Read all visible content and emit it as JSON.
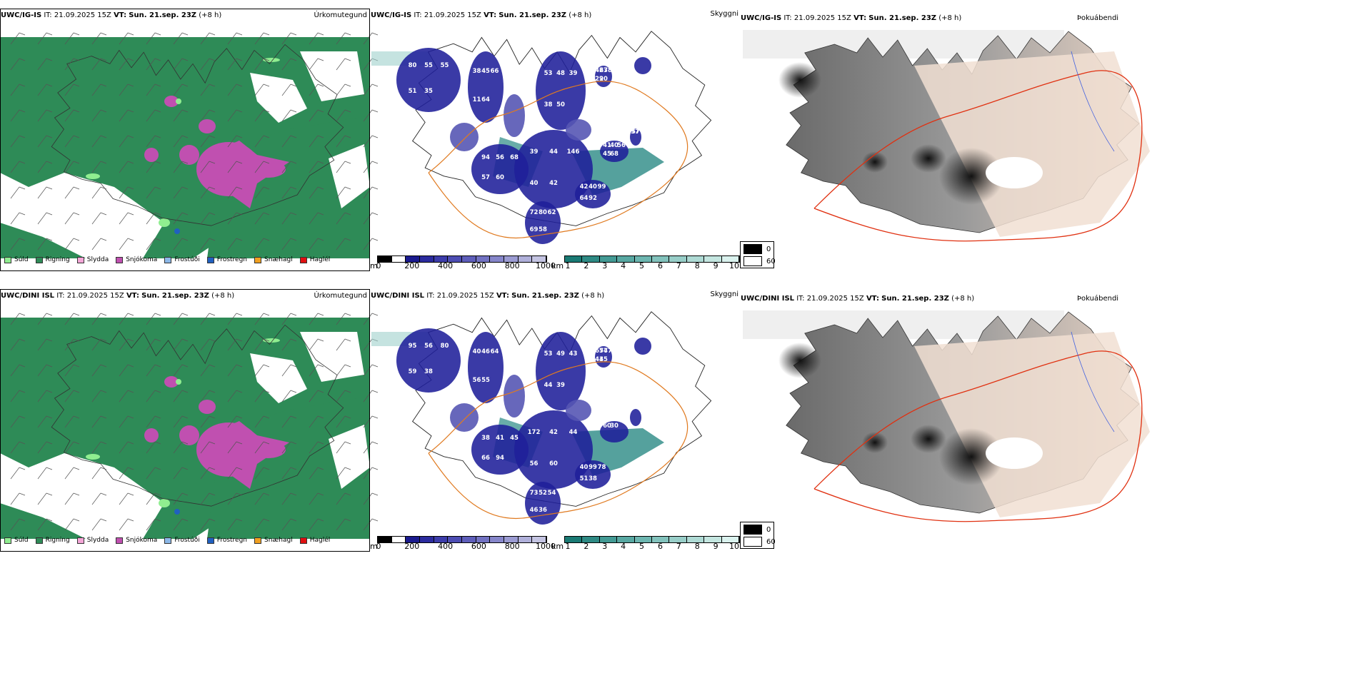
{
  "rows": [
    {
      "model": "UWC/IG-IS",
      "it_label": "IT:",
      "it_value": "21.09.2025 15Z",
      "vt_label": "VT:",
      "vt_value": "Sun. 21.sep. 23Z",
      "lead": "(+8 h)"
    },
    {
      "model": "UWC/DINI ISL",
      "it_label": "IT:",
      "it_value": "21.09.2025 15Z",
      "vt_label": "VT:",
      "vt_value": "Sun. 21.sep. 23Z",
      "lead": "(+8 h)"
    }
  ],
  "panel_tags": {
    "precip": "Úrkomutegund",
    "visibility": "Skyggni",
    "fog": "Þokuábendi"
  },
  "precip_legend": [
    {
      "label": "Súld",
      "color": "#90ee90"
    },
    {
      "label": "Rigning",
      "color": "#2e8b57"
    },
    {
      "label": "Slydda",
      "color": "#f4a6d7"
    },
    {
      "label": "Snjókoma",
      "color": "#c050b0"
    },
    {
      "label": "Frostúði",
      "color": "#8cb8e8"
    },
    {
      "label": "Frostregn",
      "color": "#2060c0"
    },
    {
      "label": "Snæhagl",
      "color": "#f0a020"
    },
    {
      "label": "Haglél",
      "color": "#e01010"
    }
  ],
  "cloudbase_scale": {
    "unit": "m",
    "ticks": [
      "0",
      "200",
      "400",
      "600",
      "800",
      "1000"
    ]
  },
  "visibility_scale": {
    "unit": "km",
    "ticks": [
      "1",
      "2",
      "3",
      "4",
      "5",
      "6",
      "7",
      "8",
      "9",
      "10"
    ]
  },
  "fog_key": [
    {
      "label": "0",
      "color": "#000000"
    },
    {
      "label": "60",
      "color": "#ffffff"
    }
  ],
  "cloud_labels": {
    "row1": [
      "80",
      "55",
      "55",
      "51",
      "35",
      "38",
      "45",
      "66",
      "11",
      "64",
      "53",
      "48",
      "39",
      "38",
      "50",
      "42",
      "63",
      "78",
      "29",
      "20",
      "39",
      "44",
      "146",
      "40",
      "42",
      "94",
      "56",
      "68",
      "57",
      "60",
      "72",
      "80",
      "62",
      "69",
      "58",
      "42",
      "40",
      "99",
      "64",
      "92",
      "41",
      "40",
      "56",
      "45",
      "68",
      "297",
      "57"
    ],
    "row2": [
      "95",
      "56",
      "80",
      "59",
      "38",
      "40",
      "46",
      "64",
      "56",
      "55",
      "53",
      "49",
      "43",
      "44",
      "39",
      "65",
      "74",
      "77",
      "43",
      "45",
      "172",
      "42",
      "44",
      "56",
      "60",
      "38",
      "41",
      "45",
      "66",
      "94",
      "73",
      "52",
      "54",
      "46",
      "36",
      "40",
      "99",
      "78",
      "51",
      "38",
      "60",
      "30"
    ]
  },
  "colors": {
    "rain": "#2e8b57",
    "snow": "#c050b0",
    "drizzle": "#90ee90",
    "cloud_low": "#1f1f9a",
    "cloud_mid": "#5656b4",
    "vis_low": "#2a8a84",
    "road": "#e07a20",
    "fog_land": "#f1dfd2"
  }
}
